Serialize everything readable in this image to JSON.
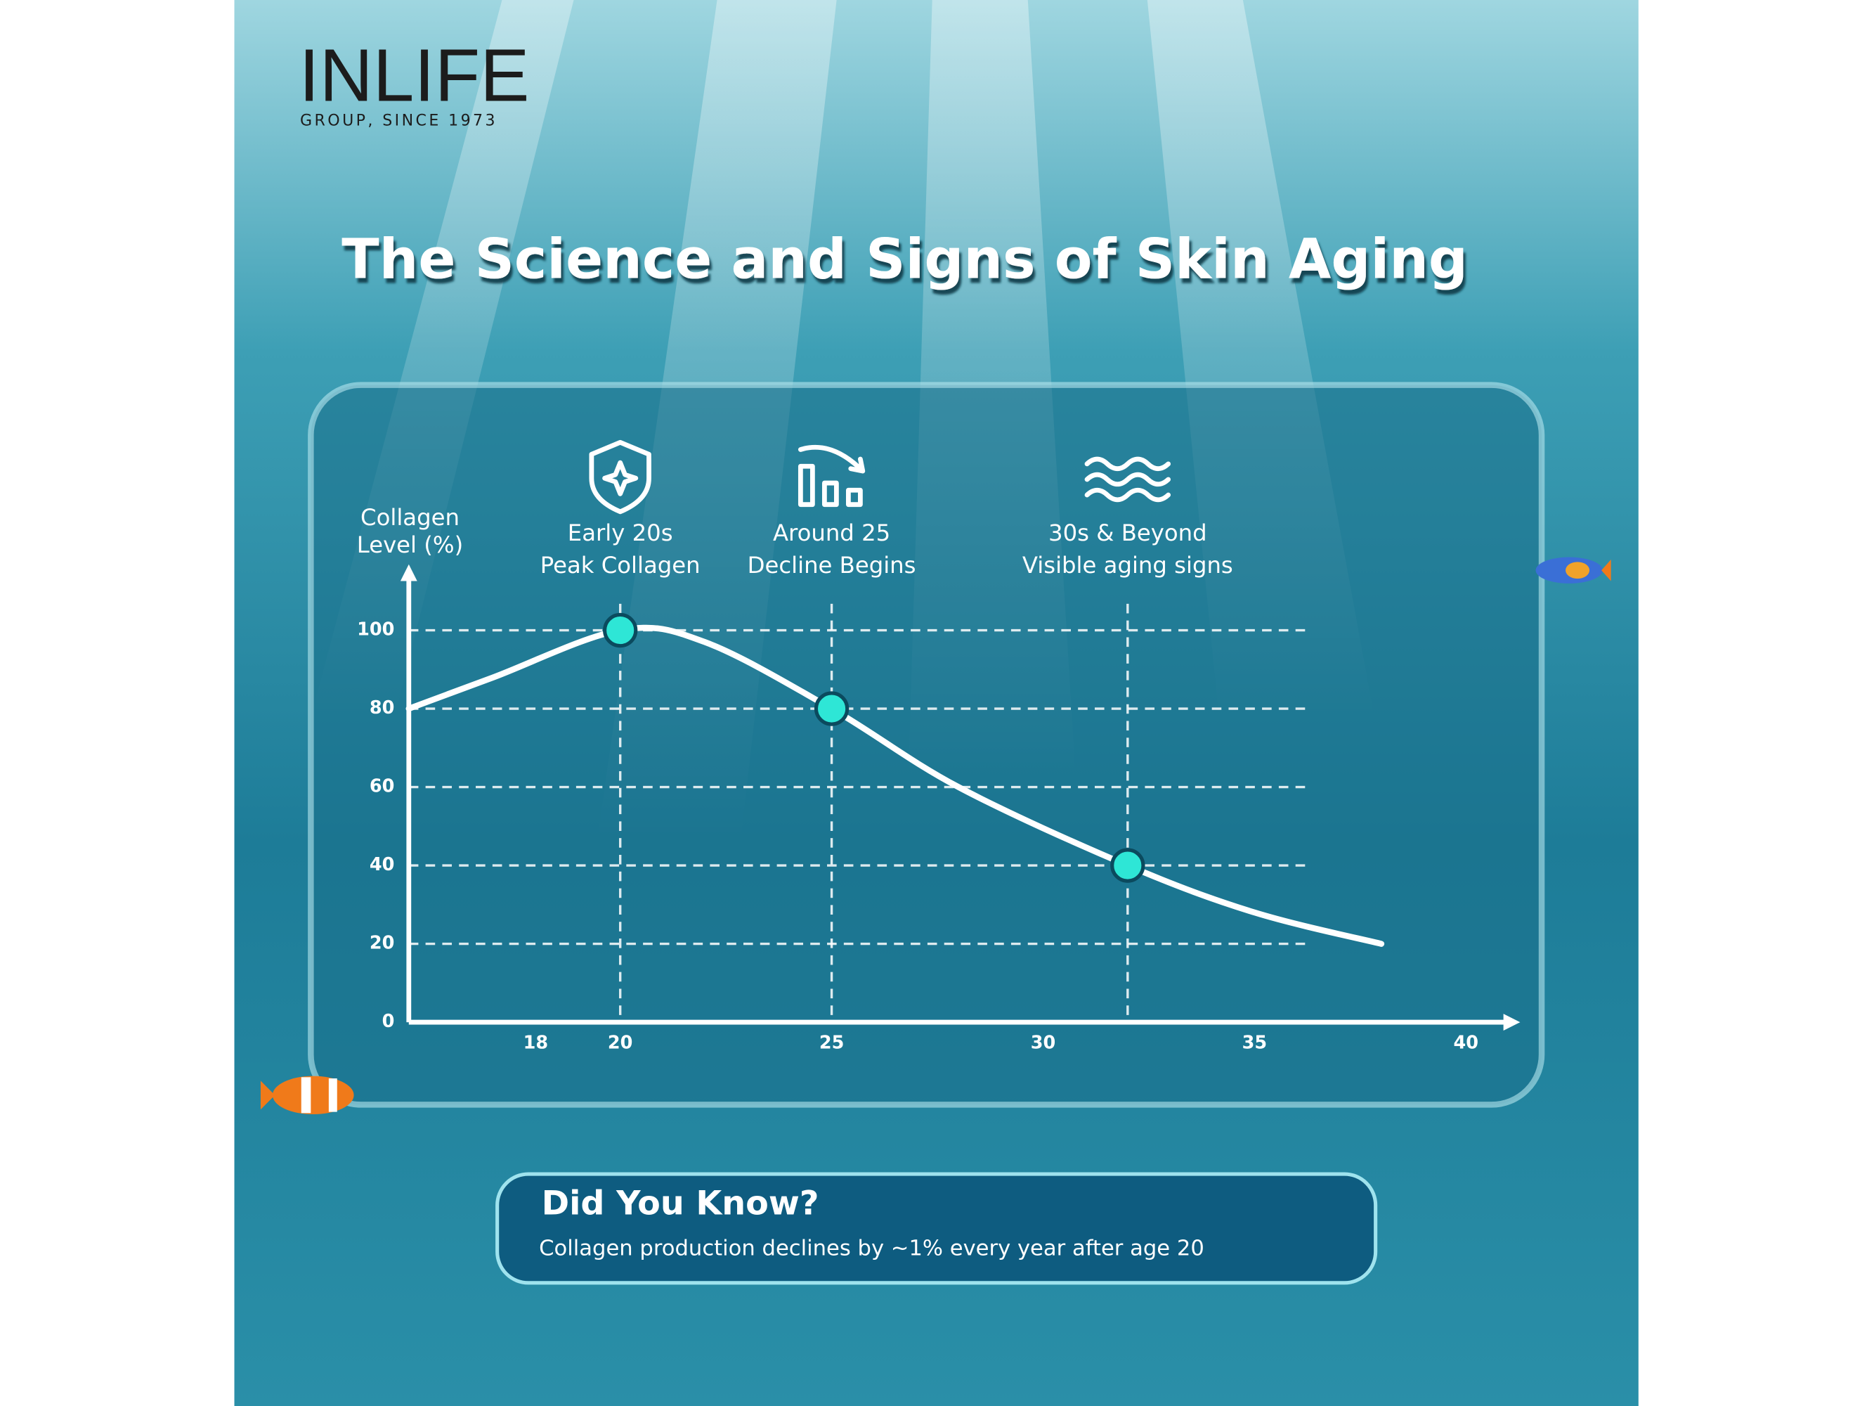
{
  "header": {
    "brand": "INLIFE",
    "tagline": "GROUP, SINCE 1973"
  },
  "chart_data": {
    "type": "line",
    "title": "The Science and Signs of Skin Aging",
    "y_label": [
      "Collagen",
      "Level (%)"
    ],
    "x": [
      15,
      17,
      20,
      22,
      25,
      28,
      32,
      35,
      38
    ],
    "values": [
      80,
      88,
      100,
      97,
      80,
      60,
      40,
      28,
      20
    ],
    "color": "#ffffff",
    "markers": {
      "x": [
        20,
        25,
        32
      ],
      "values": [
        100,
        80,
        40
      ],
      "color": "#2ee6d6"
    },
    "annotations": [
      {
        "x": 20,
        "lines": [
          "Early 20s",
          "Peak Collagen"
        ]
      },
      {
        "x": 25,
        "lines": [
          "Around 25",
          "Decline Begins"
        ]
      },
      {
        "x": 32,
        "lines": [
          "30s & Beyond",
          "Visible aging signs"
        ]
      }
    ],
    "xlim": [
      15,
      41
    ],
    "xticks": [
      18,
      20,
      25,
      30,
      35,
      40
    ],
    "ylim": [
      0,
      115
    ],
    "yticks": [
      0,
      20,
      40,
      60,
      80,
      100
    ],
    "grid": true
  },
  "note": {
    "title": "Did You Know?",
    "text": "Collagen production declines by ~1% every year after age 20"
  }
}
